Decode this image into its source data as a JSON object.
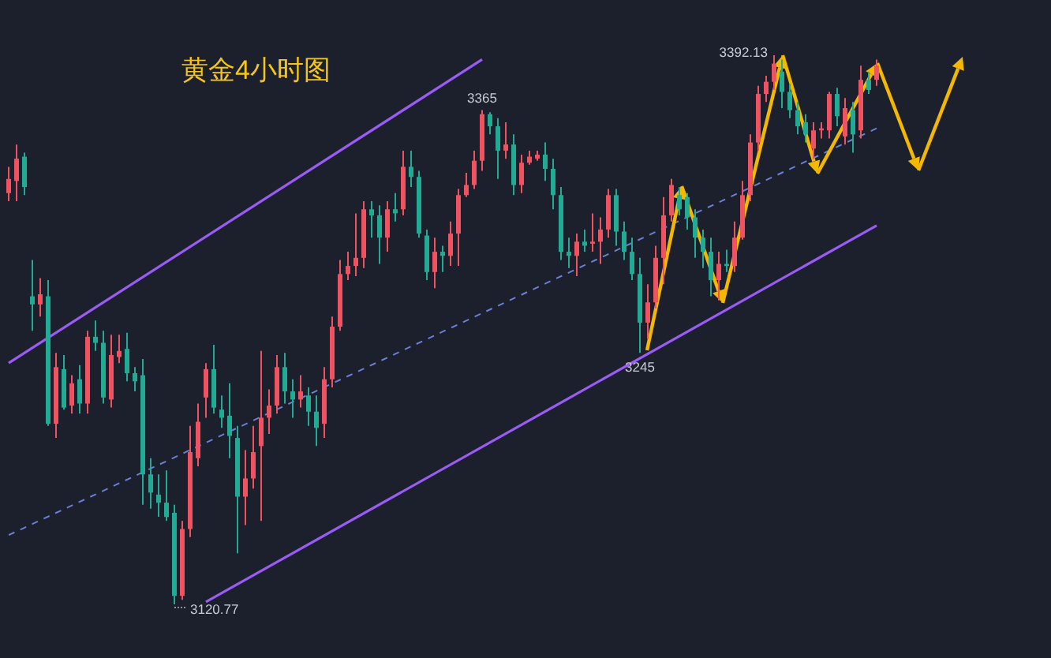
{
  "chart_data": {
    "type": "candlestick",
    "title": "黄金4小时图",
    "categories": [
      null,
      null,
      null,
      null,
      null,
      null,
      null,
      null,
      null,
      null,
      null,
      null,
      null,
      null,
      null,
      null,
      null,
      null,
      null,
      null,
      null,
      null,
      null,
      null,
      null,
      null,
      null,
      null,
      null,
      null,
      null,
      null,
      null,
      null,
      null,
      null,
      null,
      null,
      null,
      null,
      null,
      null,
      null,
      null,
      null,
      null,
      null,
      null,
      null,
      null,
      null,
      null,
      null,
      null,
      null,
      null,
      null,
      null,
      null,
      null,
      null,
      null,
      null,
      null,
      null,
      null,
      null,
      null,
      null,
      null,
      null,
      null,
      null,
      null,
      null,
      null,
      null,
      null,
      null,
      null,
      null,
      null,
      null,
      null,
      null,
      null,
      null,
      null,
      null,
      null,
      null,
      null,
      null,
      null,
      null,
      null,
      null,
      null,
      null,
      null,
      null,
      null,
      null,
      null,
      null,
      null,
      null,
      null,
      null,
      null,
      null
    ],
    "ohlc": [
      [
        3324,
        3337,
        3320,
        3331
      ],
      [
        3330,
        3348,
        3320,
        3341
      ],
      [
        3342,
        3344,
        3323,
        3327
      ],
      [
        3273,
        3291,
        3256,
        3269
      ],
      [
        3269,
        3282,
        3263,
        3274
      ],
      [
        3273,
        3281,
        3209,
        3210
      ],
      [
        3210,
        3245,
        3203,
        3238
      ],
      [
        3237,
        3244,
        3217,
        3218
      ],
      [
        3219,
        3234,
        3215,
        3230
      ],
      [
        3232,
        3239,
        3215,
        3220
      ],
      [
        3220,
        3256,
        3215,
        3253
      ],
      [
        3253,
        3261,
        3246,
        3250
      ],
      [
        3250,
        3256,
        3220,
        3223
      ],
      [
        3222,
        3254,
        3218,
        3244
      ],
      [
        3243,
        3254,
        3240,
        3246
      ],
      [
        3247,
        3255,
        3231,
        3235
      ],
      [
        3235,
        3238,
        3226,
        3231
      ],
      [
        3234,
        3242,
        3170,
        3185
      ],
      [
        3185,
        3193,
        3168,
        3176
      ],
      [
        3175,
        3185,
        3164,
        3171
      ],
      [
        3171,
        3187,
        3162,
        3164
      ],
      [
        3166,
        3170,
        3120.77,
        3125
      ],
      [
        3125,
        3162,
        3123,
        3158
      ],
      [
        3158,
        3209,
        3154,
        3196
      ],
      [
        3193,
        3220,
        3189,
        3211
      ],
      [
        3223,
        3240,
        3213,
        3237
      ],
      [
        3237,
        3249,
        3215,
        3218
      ],
      [
        3217,
        3224,
        3208,
        3213
      ],
      [
        3214,
        3230,
        3193,
        3204
      ],
      [
        3203,
        3209,
        3146,
        3174
      ],
      [
        3174,
        3197,
        3160,
        3183
      ],
      [
        3183,
        3209,
        3178,
        3196
      ],
      [
        3199,
        3246,
        3162,
        3213
      ],
      [
        3213,
        3227,
        3205,
        3219
      ],
      [
        3219,
        3244,
        3215,
        3238
      ],
      [
        3238,
        3245,
        3220,
        3226
      ],
      [
        3226,
        3232,
        3213,
        3222
      ],
      [
        3222,
        3234,
        3218,
        3226
      ],
      [
        3224,
        3228,
        3209,
        3216
      ],
      [
        3216,
        3224,
        3199,
        3208
      ],
      [
        3210,
        3238,
        3203,
        3232
      ],
      [
        3232,
        3263,
        3228,
        3258
      ],
      [
        3258,
        3291,
        3256,
        3284
      ],
      [
        3284,
        3295,
        3281,
        3288
      ],
      [
        3288,
        3314,
        3283,
        3292
      ],
      [
        3292,
        3320,
        3287,
        3316
      ],
      [
        3316,
        3320,
        3302,
        3313
      ],
      [
        3313,
        3318,
        3289,
        3302
      ],
      [
        3302,
        3320,
        3295,
        3316
      ],
      [
        3316,
        3324,
        3310,
        3314
      ],
      [
        3316,
        3345,
        3313,
        3337
      ],
      [
        3337,
        3345,
        3327,
        3332
      ],
      [
        3332,
        3335,
        3302,
        3304
      ],
      [
        3303,
        3306,
        3281,
        3285
      ],
      [
        3285,
        3302,
        3277,
        3295
      ],
      [
        3295,
        3298,
        3285,
        3293
      ],
      [
        3293,
        3310,
        3288,
        3304
      ],
      [
        3304,
        3326,
        3288,
        3323
      ],
      [
        3323,
        3334,
        3322,
        3328
      ],
      [
        3328,
        3345,
        3326,
        3340
      ],
      [
        3340,
        3365,
        3335,
        3363
      ],
      [
        3363,
        3364,
        3353,
        3357
      ],
      [
        3357,
        3361,
        3331,
        3345
      ],
      [
        3345,
        3359,
        3341,
        3348
      ],
      [
        3348,
        3353,
        3323,
        3328
      ],
      [
        3328,
        3343,
        3324,
        3339
      ],
      [
        3339,
        3345,
        3338,
        3342
      ],
      [
        3341,
        3345,
        3340,
        3343
      ],
      [
        3343,
        3349,
        3330,
        3336
      ],
      [
        3336,
        3341,
        3316,
        3323
      ],
      [
        3323,
        3327,
        3291,
        3295
      ],
      [
        3295,
        3302,
        3287,
        3293
      ],
      [
        3293,
        3304,
        3283,
        3300
      ],
      [
        3300,
        3306,
        3295,
        3298
      ],
      [
        3299,
        3314,
        3295,
        3300
      ],
      [
        3300,
        3312,
        3289,
        3306
      ],
      [
        3306,
        3326,
        3302,
        3323
      ],
      [
        3323,
        3326,
        3298,
        3305
      ],
      [
        3305,
        3310,
        3291,
        3295
      ],
      [
        3295,
        3302,
        3281,
        3284
      ],
      [
        3284,
        3292,
        3245,
        3260
      ],
      [
        3260,
        3279,
        3252,
        3270
      ],
      [
        3270,
        3298,
        3267,
        3292
      ],
      [
        3292,
        3322,
        3279,
        3313
      ],
      [
        3313,
        3331,
        3310,
        3328
      ],
      [
        3323,
        3327,
        3313,
        3316
      ],
      [
        3322,
        3324,
        3306,
        3312
      ],
      [
        3312,
        3316,
        3292,
        3302
      ],
      [
        3302,
        3306,
        3287,
        3295
      ],
      [
        3295,
        3302,
        3273,
        3281
      ],
      [
        3281,
        3295,
        3271,
        3289
      ],
      [
        3289,
        3296,
        3285,
        3288
      ],
      [
        3288,
        3310,
        3285,
        3302
      ],
      [
        3302,
        3330,
        3301,
        3323
      ],
      [
        3323,
        3353,
        3320,
        3349
      ],
      [
        3349,
        3377,
        3345,
        3373
      ],
      [
        3373,
        3382,
        3369,
        3379
      ],
      [
        3379,
        3392.13,
        3375,
        3388
      ],
      [
        3384,
        3390,
        3366,
        3374
      ],
      [
        3374,
        3378,
        3361,
        3365
      ],
      [
        3365,
        3369,
        3353,
        3357
      ],
      [
        3359,
        3363,
        3349,
        3353
      ],
      [
        3346,
        3359,
        3341,
        3355
      ],
      [
        3355,
        3359,
        3351,
        3356
      ],
      [
        3355,
        3374,
        3351,
        3373
      ],
      [
        3373,
        3376,
        3357,
        3362
      ],
      [
        3352,
        3371,
        3348,
        3366
      ],
      [
        3365,
        3369,
        3344,
        3353
      ],
      [
        3355,
        3387,
        3351,
        3380
      ],
      [
        3380,
        3384,
        3373,
        3375
      ],
      [
        3380,
        3390,
        3377,
        3387
      ]
    ],
    "series": [
      {
        "type": "line",
        "color": "#9b5cf6",
        "line_style": "solid",
        "values": [
          3240,
          null,
          null,
          null,
          null,
          null,
          null,
          null,
          null,
          null,
          null,
          null,
          null,
          null,
          null,
          null,
          null,
          null,
          null,
          null,
          null,
          null,
          null,
          null,
          null,
          null,
          null,
          null,
          null,
          null,
          null,
          null,
          null,
          null,
          null,
          null,
          null,
          null,
          null,
          null,
          null,
          null,
          null,
          null,
          null,
          null,
          null,
          null,
          null,
          null,
          null,
          null,
          null,
          null,
          null,
          null,
          null,
          null,
          null,
          null,
          3390,
          null,
          null,
          null,
          null,
          null,
          null,
          null,
          null,
          null,
          null,
          null,
          null,
          null,
          null,
          null,
          null,
          null,
          null,
          null,
          null,
          null,
          null,
          null,
          null,
          null,
          null,
          null,
          null,
          null,
          null,
          null,
          null,
          null,
          null,
          null,
          null,
          null,
          null,
          null,
          null,
          null,
          null,
          null,
          null,
          null,
          null,
          null,
          null,
          null,
          null
        ]
      },
      {
        "type": "line",
        "color": "#9b5cf6",
        "line_style": "solid",
        "values": [
          null,
          null,
          null,
          null,
          null,
          null,
          null,
          null,
          null,
          null,
          null,
          null,
          null,
          null,
          null,
          null,
          null,
          null,
          null,
          null,
          null,
          null,
          null,
          null,
          null,
          3122,
          null,
          null,
          null,
          null,
          null,
          null,
          null,
          null,
          null,
          null,
          null,
          null,
          null,
          null,
          null,
          null,
          null,
          null,
          null,
          null,
          null,
          null,
          null,
          null,
          null,
          null,
          null,
          null,
          null,
          null,
          null,
          null,
          null,
          null,
          null,
          null,
          null,
          null,
          null,
          null,
          null,
          null,
          null,
          null,
          null,
          null,
          null,
          null,
          null,
          null,
          null,
          null,
          null,
          null,
          null,
          null,
          null,
          null,
          null,
          null,
          null,
          null,
          null,
          null,
          null,
          null,
          null,
          null,
          null,
          null,
          null,
          null,
          null,
          null,
          null,
          null,
          null,
          null,
          null,
          null,
          null,
          null,
          null,
          null,
          3308
        ]
      },
      {
        "type": "line",
        "color": "#6b7fd7",
        "line_style": "dashed",
        "values": [
          3155,
          null,
          null,
          null,
          null,
          null,
          null,
          null,
          null,
          null,
          null,
          null,
          null,
          null,
          null,
          null,
          null,
          null,
          null,
          null,
          null,
          null,
          null,
          null,
          null,
          null,
          null,
          null,
          null,
          null,
          null,
          null,
          null,
          null,
          null,
          null,
          null,
          null,
          null,
          null,
          null,
          null,
          null,
          null,
          null,
          null,
          null,
          null,
          null,
          null,
          null,
          null,
          null,
          null,
          null,
          null,
          null,
          null,
          null,
          null,
          null,
          null,
          null,
          null,
          null,
          null,
          null,
          null,
          null,
          null,
          null,
          null,
          null,
          null,
          null,
          null,
          null,
          null,
          null,
          null,
          null,
          null,
          null,
          null,
          null,
          null,
          null,
          null,
          null,
          null,
          null,
          null,
          null,
          null,
          null,
          null,
          null,
          null,
          null,
          null,
          null,
          null,
          null,
          null,
          null,
          null,
          null,
          null,
          null,
          null,
          3356
        ]
      }
    ],
    "annotations": [
      "3392.13",
      {
        "text": "3365",
        "y": 3365
      },
      {
        "text": "3245",
        "y": 3245
      },
      {
        "text": "3120.77",
        "y": 3120.77
      }
    ]
  }
}
